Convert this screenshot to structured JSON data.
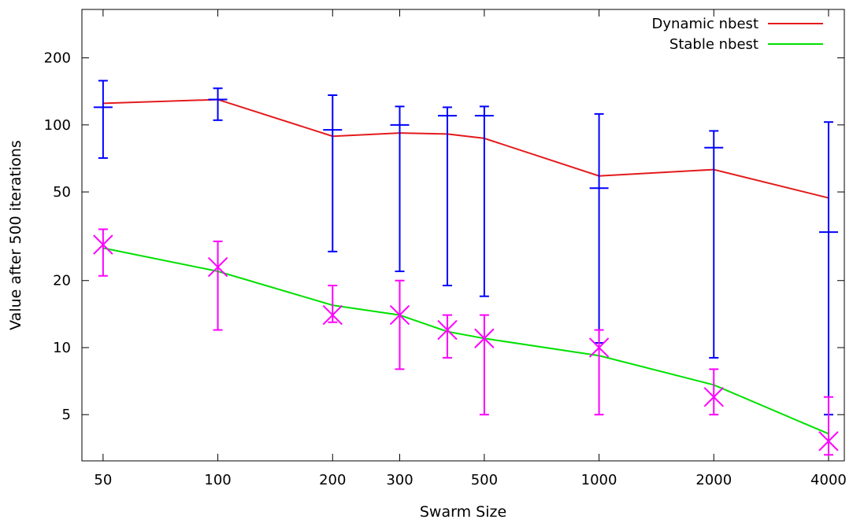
{
  "chart_data": {
    "type": "line",
    "xlabel": "Swarm Size",
    "ylabel": "Value after 500 iterations",
    "x_scale": "log",
    "y_scale": "log",
    "xlim": [
      44,
      4400
    ],
    "ylim": [
      3.1,
      330
    ],
    "x_ticks": [
      50,
      100,
      200,
      300,
      500,
      1000,
      2000,
      4000
    ],
    "x_tick_labels": [
      "50",
      "100",
      "200",
      "300",
      "500",
      "1000",
      "2000",
      "4000"
    ],
    "y_ticks": [
      5,
      10,
      20,
      50,
      100,
      200
    ],
    "y_tick_labels": [
      "5",
      "10",
      "20",
      "50",
      "100",
      "200"
    ],
    "grid": false,
    "legend_position": "top-right",
    "series": [
      {
        "name": "Dynamic nbest",
        "color": "#e41a1c",
        "x": [
          50,
          100,
          200,
          300,
          400,
          500,
          1000,
          2000,
          4000
        ],
        "y": [
          125,
          130,
          89,
          92,
          91,
          87,
          59,
          63,
          47
        ]
      },
      {
        "name": "Stable nbest",
        "color": "#00e000",
        "x": [
          50,
          100,
          200,
          300,
          400,
          500,
          1000,
          2000,
          4000
        ],
        "y": [
          28,
          22,
          15.5,
          14,
          11.8,
          11,
          9.2,
          6.8,
          4.1
        ]
      }
    ],
    "error_bars": [
      {
        "color": "#0000ff",
        "marker": "plus",
        "x": [
          50,
          100,
          200,
          300,
          400,
          500,
          1000,
          2000,
          4000
        ],
        "y": [
          120,
          130,
          95,
          100,
          110,
          110,
          52,
          79,
          33
        ],
        "low": [
          71,
          105,
          27,
          22,
          19,
          17,
          10.5,
          9,
          5
        ],
        "high": [
          158,
          146,
          136,
          121,
          120,
          121,
          112,
          94,
          103
        ]
      },
      {
        "color": "#ff00ff",
        "marker": "cross",
        "x": [
          50,
          100,
          200,
          300,
          400,
          500,
          1000,
          2000,
          4000
        ],
        "y": [
          29,
          23,
          14,
          14,
          12,
          11,
          10,
          6,
          3.8
        ],
        "low": [
          21,
          12,
          13,
          8,
          9,
          5,
          5,
          5,
          3.3
        ],
        "high": [
          34,
          30,
          19,
          20,
          14,
          14,
          12,
          8,
          6
        ]
      }
    ]
  }
}
